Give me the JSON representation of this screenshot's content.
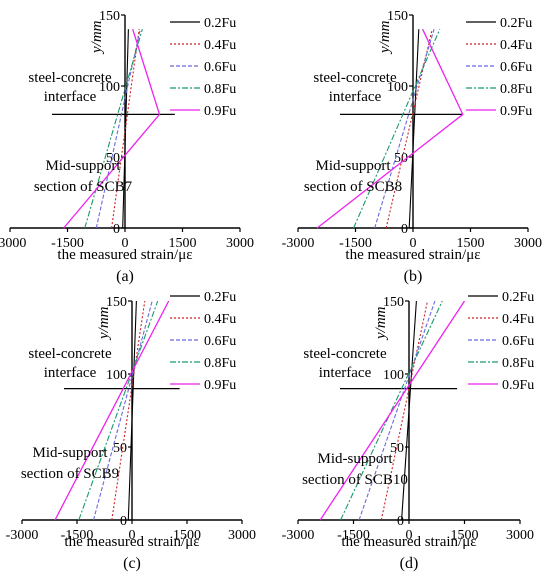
{
  "colors": {
    "0.2Fu": "#000000",
    "0.4Fu": "#cc2222",
    "0.6Fu": "#6a6adf",
    "0.8Fu": "#1a9a6a",
    "0.9Fu": "#ee22ee",
    "axis": "#000000"
  },
  "chart_data": [
    {
      "type": "line",
      "panel_label": "(a)",
      "xlabel": "the measured strain/με",
      "ylabel": "y/mm",
      "xlim": [
        -3000,
        3000
      ],
      "ylim": [
        0,
        150
      ],
      "xticks": [
        "-3000",
        "-1500",
        "0",
        "1500",
        "3000"
      ],
      "yticks": [
        "0",
        "50",
        "100",
        "150"
      ],
      "legend_position": "top-right",
      "annotations": {
        "interface_line1": "steel-concrete",
        "interface_line2": "interface",
        "section_line1": "Mid-support",
        "section_line2": "section of SCB7"
      },
      "interface_y": 80,
      "series": [
        {
          "name": "0.2Fu",
          "x": [
            -60,
            90
          ],
          "y": [
            0,
            140
          ]
        },
        {
          "name": "0.4Fu",
          "x": [
            -350,
            370
          ],
          "y": [
            0,
            140
          ]
        },
        {
          "name": "0.6Fu",
          "x": [
            -750,
            400
          ],
          "y": [
            0,
            140
          ]
        },
        {
          "name": "0.8Fu",
          "x": [
            -1050,
            450
          ],
          "y": [
            0,
            140
          ]
        },
        {
          "name": "0.9Fu",
          "x": [
            -1600,
            900,
            200
          ],
          "y": [
            0,
            80,
            140
          ]
        }
      ]
    },
    {
      "type": "line",
      "panel_label": "(b)",
      "xlabel": "the measured strain/με",
      "ylabel": "y/mm",
      "xlim": [
        -3000,
        3000
      ],
      "ylim": [
        0,
        150
      ],
      "xticks": [
        "-3000",
        "-1500",
        "0",
        "1500",
        "3000"
      ],
      "yticks": [
        "0",
        "50",
        "100",
        "150"
      ],
      "legend_position": "top-right",
      "annotations": {
        "interface_line1": "steel-concrete",
        "interface_line2": "interface",
        "section_line1": "Mid-support",
        "section_line2": "section of SCB8"
      },
      "interface_y": 80,
      "series": [
        {
          "name": "0.2Fu",
          "x": [
            -100,
            150
          ],
          "y": [
            0,
            140
          ]
        },
        {
          "name": "0.4Fu",
          "x": [
            -700,
            500
          ],
          "y": [
            0,
            140
          ]
        },
        {
          "name": "0.6Fu",
          "x": [
            -1000,
            550
          ],
          "y": [
            0,
            140
          ]
        },
        {
          "name": "0.8Fu",
          "x": [
            -1550,
            700
          ],
          "y": [
            0,
            140
          ]
        },
        {
          "name": "0.9Fu",
          "x": [
            -2500,
            1300,
            250
          ],
          "y": [
            0,
            80,
            140
          ]
        }
      ]
    },
    {
      "type": "line",
      "panel_label": "(c)",
      "xlabel": "the measured strain/με",
      "ylabel": "y/mm",
      "xlim": [
        -3000,
        3000
      ],
      "ylim": [
        0,
        150
      ],
      "xticks": [
        "-3000",
        "-1500",
        "0",
        "1500",
        "3000"
      ],
      "yticks": [
        "0",
        "50",
        "100",
        "150"
      ],
      "legend_position": "top-right",
      "annotations": {
        "interface_line1": "steel-concrete",
        "interface_line2": "interface",
        "section_line1": "Mid-support",
        "section_line2": "section of SCB9"
      },
      "interface_y": 90,
      "series": [
        {
          "name": "0.2Fu",
          "x": [
            -100,
            120
          ],
          "y": [
            0,
            150
          ]
        },
        {
          "name": "0.4Fu",
          "x": [
            -550,
            350
          ],
          "y": [
            0,
            150
          ]
        },
        {
          "name": "0.6Fu",
          "x": [
            -1050,
            550
          ],
          "y": [
            0,
            150
          ]
        },
        {
          "name": "0.8Fu",
          "x": [
            -1450,
            700
          ],
          "y": [
            0,
            150
          ]
        },
        {
          "name": "0.9Fu",
          "x": [
            -2100,
            1000
          ],
          "y": [
            0,
            150
          ]
        }
      ]
    },
    {
      "type": "line",
      "panel_label": "(d)",
      "xlabel": "the measured strain/με",
      "ylabel": "y/mm",
      "xlim": [
        -3000,
        3000
      ],
      "ylim": [
        0,
        150
      ],
      "xticks": [
        "-3000",
        "-1500",
        "0",
        "1500",
        "3000"
      ],
      "yticks": [
        "0",
        "50",
        "100",
        "150"
      ],
      "legend_position": "top-right",
      "annotations": {
        "interface_line1": "steel-concrete",
        "interface_line2": "interface",
        "section_line1": "Mid-support",
        "section_line2": "section of SCB10"
      },
      "interface_y": 90,
      "series": [
        {
          "name": "0.2Fu",
          "x": [
            -200,
            200
          ],
          "y": [
            0,
            150
          ]
        },
        {
          "name": "0.4Fu",
          "x": [
            -750,
            500
          ],
          "y": [
            0,
            150
          ]
        },
        {
          "name": "0.6Fu",
          "x": [
            -1350,
            700
          ],
          "y": [
            0,
            150
          ]
        },
        {
          "name": "0.8Fu",
          "x": [
            -1850,
            900
          ],
          "y": [
            0,
            150
          ]
        },
        {
          "name": "0.9Fu",
          "x": [
            -2400,
            1500
          ],
          "y": [
            0,
            150
          ]
        }
      ]
    }
  ]
}
